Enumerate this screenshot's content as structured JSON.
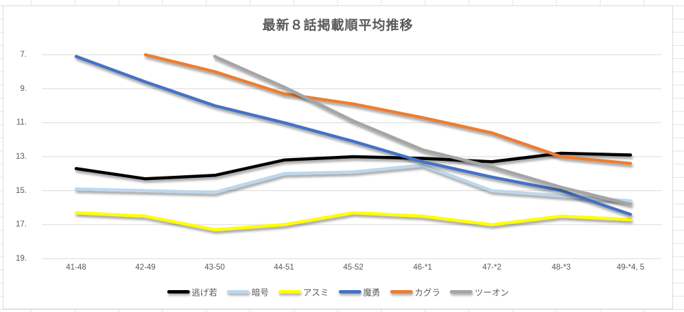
{
  "chart_data": {
    "type": "line",
    "title": "最新８話掲載順平均推移",
    "categories": [
      "41-48",
      "42-49",
      "43-50",
      "44-51",
      "45-52",
      "46-*1",
      "47-*2",
      "48-*3",
      "49-*4, 5"
    ],
    "series": [
      {
        "name": "逃げ若",
        "color": "#000000",
        "values": [
          13.7,
          14.3,
          14.1,
          13.2,
          13.0,
          13.1,
          13.3,
          12.8,
          12.9
        ]
      },
      {
        "name": "暗号",
        "color": "#BDD7EE",
        "values": [
          14.9,
          15.0,
          15.1,
          14.0,
          13.9,
          13.5,
          15.0,
          15.3,
          15.6
        ]
      },
      {
        "name": "アスミ",
        "color": "#FFFF00",
        "values": [
          16.3,
          16.5,
          17.3,
          17.0,
          16.3,
          16.5,
          17.0,
          16.5,
          16.7
        ]
      },
      {
        "name": "魔勇",
        "color": "#4472C4",
        "values": [
          7.1,
          8.6,
          10.0,
          11.0,
          12.1,
          13.3,
          14.2,
          15.0,
          16.4
        ]
      },
      {
        "name": "カグラ",
        "color": "#ED7D31",
        "values": [
          null,
          7.0,
          8.0,
          9.3,
          9.9,
          10.7,
          11.6,
          13.0,
          13.4
        ]
      },
      {
        "name": "ツーオン",
        "color": "#A5A5A5",
        "values": [
          null,
          null,
          7.1,
          8.9,
          10.9,
          12.6,
          13.6,
          14.8,
          15.8
        ]
      }
    ],
    "y_axis": {
      "ticks": [
        "7.",
        "9.",
        "11.",
        "13.",
        "15.",
        "17.",
        "19."
      ],
      "tick_values": [
        7,
        9,
        11,
        13,
        15,
        17,
        19
      ],
      "min": 7,
      "max": 19,
      "inverted": true
    },
    "legend_position": "bottom",
    "grid": true,
    "gridline_color": "#D9D9D9",
    "text_color": "#595959"
  }
}
